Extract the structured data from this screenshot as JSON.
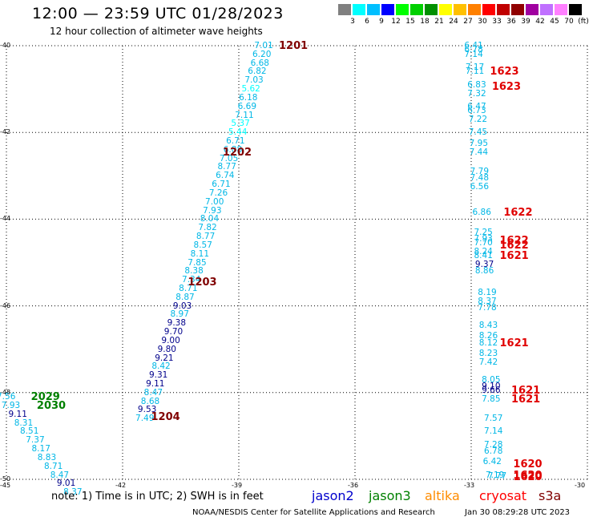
{
  "header": {
    "title": "12:00 — 23:59 UTC 01/28/2023",
    "subtitle": "12 hour collection of altimeter wave heights"
  },
  "scale": {
    "colors": [
      "#808080",
      "#00ffff",
      "#00bfff",
      "#0000ff",
      "#00ff00",
      "#00d000",
      "#009000",
      "#ffff00",
      "#ffc000",
      "#ff8000",
      "#ff0000",
      "#c00000",
      "#900000",
      "#a000a0",
      "#c070ff",
      "#ff80ff",
      "#000000"
    ],
    "labels": [
      "3",
      "6",
      "9",
      "12",
      "15",
      "18",
      "21",
      "24",
      "27",
      "30",
      "33",
      "36",
      "39",
      "42",
      "45",
      "70",
      "(ft)"
    ]
  },
  "chart_data": {
    "type": "scatter",
    "xlim": [
      -45,
      -30
    ],
    "ylim": [
      -50,
      -40
    ],
    "x_ticks": [
      -45,
      -42,
      -39,
      -36,
      -33,
      -30
    ],
    "y_ticks": [
      -40,
      -42,
      -44,
      -46,
      -48,
      -50
    ],
    "x_tick_labels": [
      "-45",
      "-42",
      "-39",
      "-36",
      "-33",
      "-30"
    ],
    "y_tick_labels": [
      "-40",
      "-42",
      "-44",
      "-46",
      "-48",
      "-50"
    ],
    "grid": true,
    "tracks": [
      {
        "name": "track-1",
        "points": [
          {
            "x": -38.35,
            "y": -40.0,
            "v": "7.01"
          },
          {
            "x": -38.4,
            "y": -40.2,
            "v": "6.20"
          },
          {
            "x": -38.45,
            "y": -40.4,
            "v": "6.68"
          },
          {
            "x": -38.52,
            "y": -40.6,
            "v": "6.82"
          },
          {
            "x": -38.6,
            "y": -40.8,
            "v": "7.03"
          },
          {
            "x": -38.68,
            "y": -41.0,
            "v": "5.62"
          },
          {
            "x": -38.75,
            "y": -41.2,
            "v": "6.18"
          },
          {
            "x": -38.78,
            "y": -41.4,
            "v": "6.69"
          },
          {
            "x": -38.85,
            "y": -41.6,
            "v": "7.11"
          },
          {
            "x": -38.95,
            "y": -41.8,
            "v": "5.37"
          },
          {
            "x": -39.02,
            "y": -42.0,
            "v": "5.44"
          },
          {
            "x": -39.08,
            "y": -42.2,
            "v": "6.71"
          },
          {
            "x": -39.15,
            "y": -42.4,
            "v": "6.88"
          },
          {
            "x": -39.25,
            "y": -42.6,
            "v": "7.05"
          },
          {
            "x": -39.3,
            "y": -42.8,
            "v": "8.77"
          },
          {
            "x": -39.35,
            "y": -43.0,
            "v": "6.74"
          },
          {
            "x": -39.45,
            "y": -43.2,
            "v": "6.71"
          },
          {
            "x": -39.52,
            "y": -43.4,
            "v": "7.26"
          },
          {
            "x": -39.62,
            "y": -43.6,
            "v": "7.00"
          },
          {
            "x": -39.68,
            "y": -43.8,
            "v": "7.93"
          },
          {
            "x": -39.75,
            "y": -44.0,
            "v": "8.04"
          },
          {
            "x": -39.8,
            "y": -44.2,
            "v": "7.82"
          },
          {
            "x": -39.85,
            "y": -44.4,
            "v": "8.77"
          },
          {
            "x": -39.92,
            "y": -44.6,
            "v": "8.57"
          },
          {
            "x": -40.0,
            "y": -44.8,
            "v": "8.11"
          },
          {
            "x": -40.07,
            "y": -45.0,
            "v": "7.85"
          },
          {
            "x": -40.15,
            "y": -45.2,
            "v": "8.38"
          },
          {
            "x": -40.22,
            "y": -45.4,
            "v": "7.34"
          },
          {
            "x": -40.3,
            "y": -45.6,
            "v": "8.71"
          },
          {
            "x": -40.38,
            "y": -45.8,
            "v": "8.87"
          },
          {
            "x": -40.45,
            "y": -46.0,
            "v": "9.03"
          },
          {
            "x": -40.52,
            "y": -46.2,
            "v": "8.97"
          },
          {
            "x": -40.6,
            "y": -46.4,
            "v": "9.38"
          },
          {
            "x": -40.68,
            "y": -46.6,
            "v": "9.70"
          },
          {
            "x": -40.75,
            "y": -46.8,
            "v": "9.00"
          },
          {
            "x": -40.85,
            "y": -47.0,
            "v": "9.80"
          },
          {
            "x": -40.92,
            "y": -47.2,
            "v": "9.21"
          },
          {
            "x": -41.0,
            "y": -47.4,
            "v": "8.42"
          },
          {
            "x": -41.07,
            "y": -47.6,
            "v": "9.31"
          },
          {
            "x": -41.15,
            "y": -47.8,
            "v": "9.11"
          },
          {
            "x": -41.2,
            "y": -48.0,
            "v": "8.47"
          },
          {
            "x": -41.28,
            "y": -48.2,
            "v": "8.68"
          },
          {
            "x": -41.36,
            "y": -48.4,
            "v": "9.53"
          },
          {
            "x": -41.42,
            "y": -48.6,
            "v": "7.49"
          }
        ]
      },
      {
        "name": "track-2",
        "points": [
          {
            "x": -32.93,
            "y": -40.0,
            "v": "6.41"
          },
          {
            "x": -32.93,
            "y": -40.1,
            "v": "6.78"
          },
          {
            "x": -32.93,
            "y": -40.2,
            "v": "7.14"
          },
          {
            "x": -32.9,
            "y": -40.5,
            "v": "7.17"
          },
          {
            "x": -32.9,
            "y": -40.6,
            "v": "7.11"
          },
          {
            "x": -32.85,
            "y": -40.9,
            "v": "6.83"
          },
          {
            "x": -32.85,
            "y": -41.1,
            "v": "7.32"
          },
          {
            "x": -32.85,
            "y": -41.4,
            "v": "6.47"
          },
          {
            "x": -32.85,
            "y": -41.5,
            "v": "6.73"
          },
          {
            "x": -32.82,
            "y": -41.7,
            "v": "7.22"
          },
          {
            "x": -32.82,
            "y": -42.0,
            "v": "7.45"
          },
          {
            "x": -32.8,
            "y": -42.25,
            "v": "7.95"
          },
          {
            "x": -32.8,
            "y": -42.45,
            "v": "7.44"
          },
          {
            "x": -32.78,
            "y": -42.9,
            "v": "7.79"
          },
          {
            "x": -32.78,
            "y": -43.05,
            "v": "7.48"
          },
          {
            "x": -32.78,
            "y": -43.25,
            "v": "6.56"
          },
          {
            "x": -32.72,
            "y": -43.85,
            "v": "6.86"
          },
          {
            "x": -32.68,
            "y": -44.3,
            "v": "7.25"
          },
          {
            "x": -32.68,
            "y": -44.45,
            "v": "7.93"
          },
          {
            "x": -32.68,
            "y": -44.55,
            "v": "7.70"
          },
          {
            "x": -32.68,
            "y": -44.75,
            "v": "8.24"
          },
          {
            "x": -32.68,
            "y": -44.85,
            "v": "8.41"
          },
          {
            "x": -32.65,
            "y": -45.05,
            "v": "9.37"
          },
          {
            "x": -32.65,
            "y": -45.2,
            "v": "8.86"
          },
          {
            "x": -32.58,
            "y": -45.7,
            "v": "8.19"
          },
          {
            "x": -32.58,
            "y": -45.9,
            "v": "8.37"
          },
          {
            "x": -32.58,
            "y": -46.05,
            "v": "7.78"
          },
          {
            "x": -32.55,
            "y": -46.45,
            "v": "8.43"
          },
          {
            "x": -32.55,
            "y": -46.7,
            "v": "8.26"
          },
          {
            "x": -32.55,
            "y": -46.85,
            "v": "8.12"
          },
          {
            "x": -32.55,
            "y": -47.1,
            "v": "8.23"
          },
          {
            "x": -32.55,
            "y": -47.3,
            "v": "7.42"
          },
          {
            "x": -32.48,
            "y": -47.7,
            "v": "8.05"
          },
          {
            "x": -32.48,
            "y": -47.85,
            "v": "9.10"
          },
          {
            "x": -32.48,
            "y": -47.95,
            "v": "9.66"
          },
          {
            "x": -32.48,
            "y": -48.15,
            "v": "7.85"
          },
          {
            "x": -32.42,
            "y": -48.6,
            "v": "7.57"
          },
          {
            "x": -32.42,
            "y": -48.9,
            "v": "7.14"
          },
          {
            "x": -32.42,
            "y": -49.2,
            "v": "7.28"
          },
          {
            "x": -32.42,
            "y": -49.35,
            "v": "6.78"
          },
          {
            "x": -32.45,
            "y": -49.6,
            "v": "6.42"
          },
          {
            "x": -32.38,
            "y": -49.9,
            "v": "7.19"
          },
          {
            "x": -32.32,
            "y": -49.92,
            "v": "7.77"
          }
        ]
      },
      {
        "name": "track-3",
        "points": [
          {
            "x": -45.0,
            "y": -48.1,
            "v": "7.56"
          },
          {
            "x": -44.88,
            "y": -48.3,
            "v": "7.93"
          },
          {
            "x": -44.7,
            "y": -48.5,
            "v": "9.11"
          },
          {
            "x": -44.55,
            "y": -48.7,
            "v": "8.31"
          },
          {
            "x": -44.4,
            "y": -48.9,
            "v": "8.51"
          },
          {
            "x": -44.25,
            "y": -49.1,
            "v": "7.37"
          },
          {
            "x": -44.1,
            "y": -49.3,
            "v": "8.17"
          },
          {
            "x": -43.95,
            "y": -49.5,
            "v": "8.83"
          },
          {
            "x": -43.78,
            "y": -49.7,
            "v": "8.71"
          },
          {
            "x": -43.62,
            "y": -49.9,
            "v": "8.47"
          },
          {
            "x": -43.45,
            "y": -50.1,
            "v": "9.01"
          },
          {
            "x": -43.28,
            "y": -50.3,
            "v": "8.37"
          }
        ]
      }
    ],
    "pass_labels": [
      {
        "x": -37.8,
        "y": -40.0,
        "text": "1201",
        "color": "#800000"
      },
      {
        "x": -39.25,
        "y": -42.45,
        "text": "1202",
        "color": "#800000"
      },
      {
        "x": -40.15,
        "y": -45.45,
        "text": "1203",
        "color": "#800000"
      },
      {
        "x": -41.1,
        "y": -48.55,
        "text": "1204",
        "color": "#800000"
      },
      {
        "x": -32.35,
        "y": -40.6,
        "text": "1623",
        "color": "#e00000"
      },
      {
        "x": -32.3,
        "y": -40.95,
        "text": "1623",
        "color": "#e00000"
      },
      {
        "x": -32.0,
        "y": -43.85,
        "text": "1622",
        "color": "#e00000"
      },
      {
        "x": -32.1,
        "y": -44.5,
        "text": "1622",
        "color": "#e00000"
      },
      {
        "x": -32.1,
        "y": -44.6,
        "text": "1622",
        "color": "#e00000"
      },
      {
        "x": -32.1,
        "y": -44.85,
        "text": "1621",
        "color": "#e00000"
      },
      {
        "x": -32.1,
        "y": -46.85,
        "text": "1621",
        "color": "#e00000"
      },
      {
        "x": -31.8,
        "y": -47.95,
        "text": "1621",
        "color": "#e00000"
      },
      {
        "x": -31.8,
        "y": -48.15,
        "text": "1621",
        "color": "#e00000"
      },
      {
        "x": -31.75,
        "y": -49.65,
        "text": "1620",
        "color": "#e00000"
      },
      {
        "x": -31.75,
        "y": -49.9,
        "text": "1620",
        "color": "#e00000"
      },
      {
        "x": -31.75,
        "y": -49.95,
        "text": "1620",
        "color": "#e00000"
      },
      {
        "x": -44.2,
        "y": -48.1,
        "text": "2029",
        "color": "#008000"
      },
      {
        "x": -44.05,
        "y": -48.3,
        "text": "2030",
        "color": "#008000"
      }
    ]
  },
  "footer": {
    "note": "note:  1) Time is in UTC; 2) SWH is in feet",
    "legend": [
      {
        "text": "jason2",
        "color": "#0000cc"
      },
      {
        "text": "jason3",
        "color": "#008000"
      },
      {
        "text": "altika",
        "color": "#ff8c00"
      },
      {
        "text": "cryosat",
        "color": "#ff0000"
      },
      {
        "text": "s3a",
        "color": "#800000"
      }
    ],
    "credit": "NOAA/NESDIS Center for Satellite Applications and Research",
    "timestamp": "Jan 30 08:29:28 UTC 2023"
  }
}
